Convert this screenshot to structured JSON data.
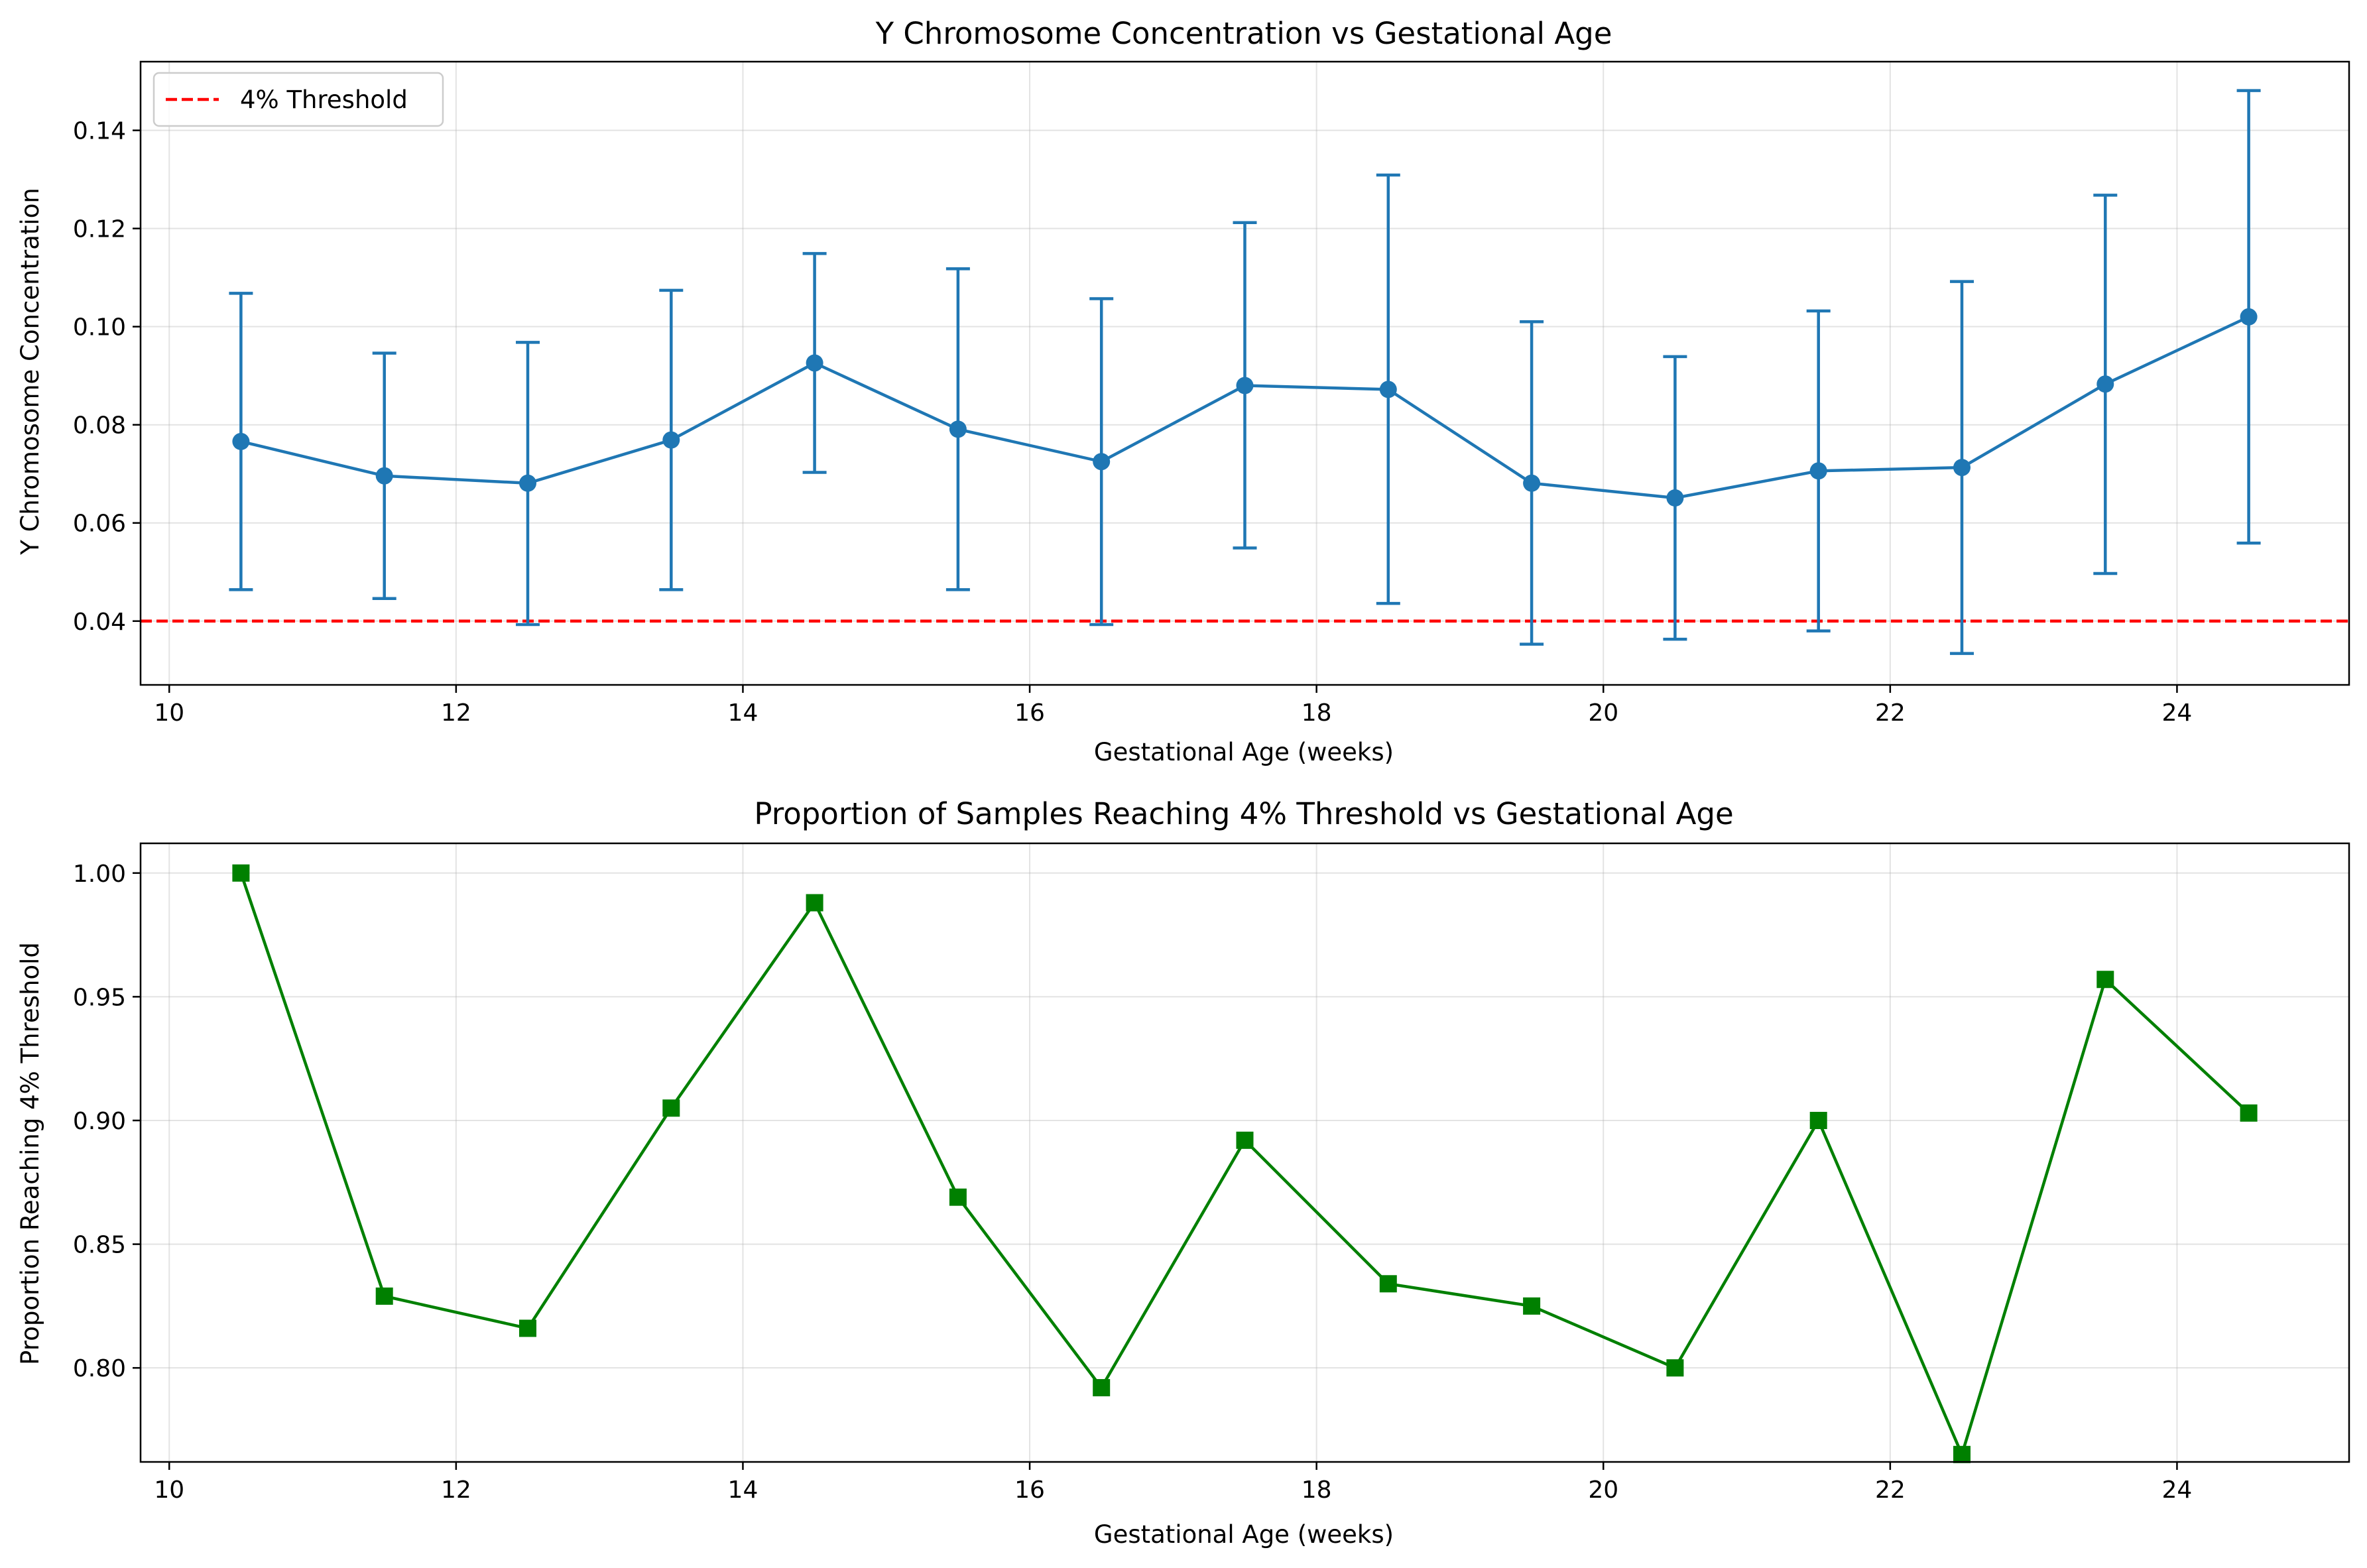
{
  "chart_data": [
    {
      "type": "line",
      "title": "Y Chromosome Concentration vs Gestational Age",
      "xlabel": "Gestational Age (weeks)",
      "ylabel": "Y Chromosome Concentration",
      "xlim": [
        9.8,
        25.2
      ],
      "ylim": [
        0.027,
        0.154
      ],
      "xticks": [
        10,
        12,
        14,
        16,
        18,
        20,
        22,
        24
      ],
      "yticks": [
        0.04,
        0.06,
        0.08,
        0.1,
        0.12,
        0.14
      ],
      "ytick_labels": [
        "0.04",
        "0.06",
        "0.08",
        "0.10",
        "0.12",
        "0.14"
      ],
      "grid": true,
      "legend_position": "top-left",
      "series": [
        {
          "marker": "circle",
          "color": "#1f77b4",
          "x": [
            10.5,
            11.5,
            12.5,
            13.5,
            14.5,
            15.5,
            16.5,
            17.5,
            18.5,
            19.5,
            20.5,
            21.5,
            22.5,
            23.5,
            24.5
          ],
          "y": [
            0.0766,
            0.0696,
            0.0681,
            0.0769,
            0.0926,
            0.0791,
            0.0725,
            0.088,
            0.0872,
            0.0681,
            0.0651,
            0.0706,
            0.0713,
            0.0883,
            0.102
          ],
          "err_low": [
            0.0464,
            0.0446,
            0.0393,
            0.0464,
            0.0703,
            0.0464,
            0.0393,
            0.0549,
            0.0436,
            0.0353,
            0.0363,
            0.038,
            0.0334,
            0.0497,
            0.0559
          ],
          "err_high": [
            0.1068,
            0.0946,
            0.0968,
            0.1074,
            0.1149,
            0.1118,
            0.1057,
            0.1212,
            0.1309,
            0.101,
            0.0939,
            0.1032,
            0.1092,
            0.1268,
            0.1481
          ]
        }
      ],
      "reference_line": {
        "name": "4% Threshold",
        "y": 0.04,
        "color": "#ff0000",
        "style": "dashed"
      }
    },
    {
      "type": "line",
      "title": "Proportion of Samples Reaching 4% Threshold vs Gestational Age",
      "xlabel": "Gestational Age (weeks)",
      "ylabel": "Proportion Reaching 4% Threshold",
      "xlim": [
        9.8,
        25.2
      ],
      "ylim": [
        0.762,
        1.012
      ],
      "xticks": [
        10,
        12,
        14,
        16,
        18,
        20,
        22,
        24
      ],
      "yticks": [
        0.8,
        0.85,
        0.9,
        0.95,
        1.0
      ],
      "ytick_labels": [
        "0.80",
        "0.85",
        "0.90",
        "0.95",
        "1.00"
      ],
      "grid": true,
      "series": [
        {
          "marker": "square",
          "color": "#008000",
          "x": [
            10.5,
            11.5,
            12.5,
            13.5,
            14.5,
            15.5,
            16.5,
            17.5,
            18.5,
            19.5,
            20.5,
            21.5,
            22.5,
            23.5,
            24.5
          ],
          "y": [
            1.0,
            0.829,
            0.816,
            0.905,
            0.988,
            0.869,
            0.792,
            0.892,
            0.834,
            0.825,
            0.8,
            0.9,
            0.765,
            0.957,
            0.903
          ]
        }
      ]
    }
  ]
}
